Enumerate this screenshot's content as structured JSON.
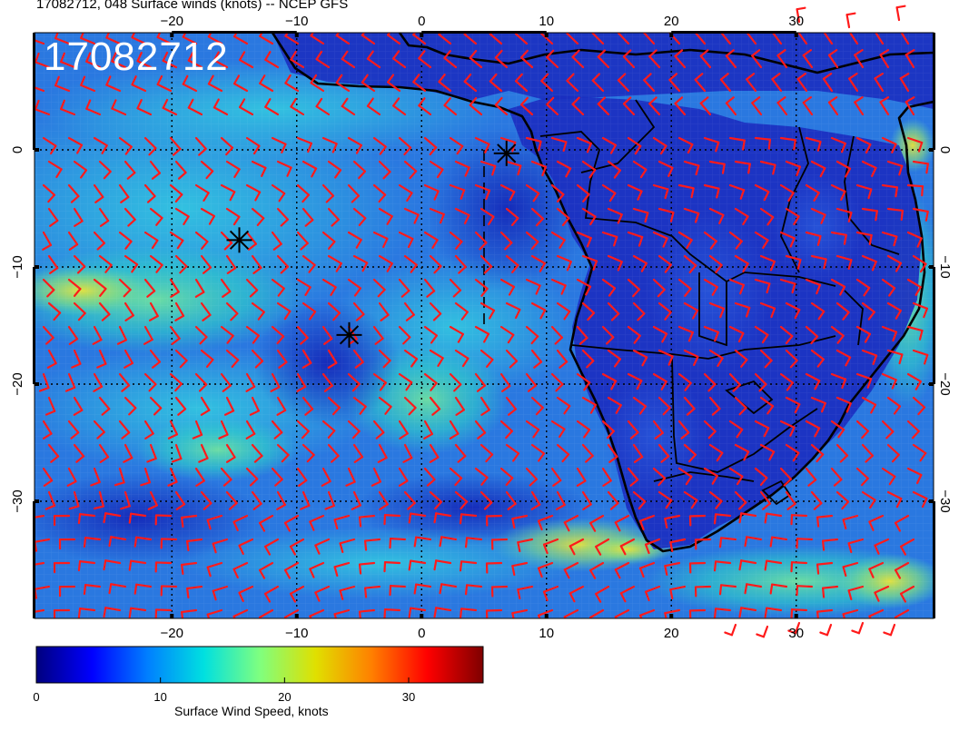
{
  "figure": {
    "title": "17082712, 048 Surface winds (knots) -- NCEP GFS",
    "stamp": "17082712"
  },
  "map": {
    "lon_range": [
      -31,
      41
    ],
    "lat_range": [
      -40,
      10
    ],
    "lon_ticks": [
      {
        "value": -20,
        "label": "−20"
      },
      {
        "value": -10,
        "label": "−10"
      },
      {
        "value": 0,
        "label": "0"
      },
      {
        "value": 10,
        "label": "10"
      },
      {
        "value": 20,
        "label": "20"
      },
      {
        "value": 30,
        "label": "30"
      }
    ],
    "lat_ticks": [
      {
        "value": 0,
        "label": "0"
      },
      {
        "value": -10,
        "label": "−10"
      },
      {
        "value": -20,
        "label": "−20"
      },
      {
        "value": -30,
        "label": "−30"
      }
    ],
    "markers": [
      {
        "lon": 6.8,
        "lat": -0.3
      },
      {
        "lon": -14.6,
        "lat": -7.7
      },
      {
        "lon": -5.8,
        "lat": -15.8
      }
    ],
    "colors": {
      "ocean_low": "#1f3fd6",
      "ocean_mid": "#2a9be6",
      "ocean_high": "#2fd0c8",
      "land": "#1b2fc0",
      "barb": "#ff1a1a",
      "coast": "#000000"
    }
  },
  "colorbar": {
    "ticks": [
      {
        "value": 0,
        "label": "0"
      },
      {
        "value": 10,
        "label": "10"
      },
      {
        "value": 20,
        "label": "20"
      },
      {
        "value": 30,
        "label": "30"
      }
    ],
    "range": [
      0,
      36
    ],
    "title": "Surface Wind Speed, knots",
    "stops": [
      "#00007f",
      "#0000ff",
      "#0080ff",
      "#00e0e0",
      "#7fff7f",
      "#e0e000",
      "#ff8000",
      "#ff0000",
      "#7f0000"
    ]
  }
}
